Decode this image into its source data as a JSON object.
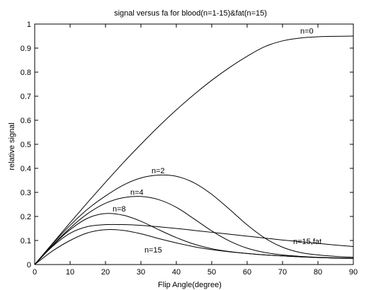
{
  "chart_data": {
    "type": "line",
    "title": "signal versus fa for blood(n=1-15)&fat(n=15)",
    "xlabel": "Flip Angle(degree)",
    "ylabel": "relative signal",
    "xlim": [
      0,
      90
    ],
    "ylim": [
      0,
      1
    ],
    "grid": false,
    "legend": "none",
    "x_ticks": [
      0,
      10,
      20,
      30,
      40,
      50,
      60,
      70,
      80,
      90
    ],
    "x_tick_labels": [
      "0",
      "10",
      "20",
      "30",
      "40",
      "50",
      "60",
      "70",
      "80",
      "90"
    ],
    "y_ticks": [
      0,
      0.1,
      0.2,
      0.3,
      0.4,
      0.5,
      0.6,
      0.7,
      0.8,
      0.9,
      1
    ],
    "y_tick_labels": [
      "0",
      "0.1",
      "0.2",
      "0.3",
      "0.4",
      "0.5",
      "0.6",
      "0.7",
      "0.8",
      "0.9",
      "1"
    ],
    "x": [
      0,
      5,
      10,
      15,
      20,
      25,
      30,
      35,
      40,
      45,
      50,
      55,
      60,
      65,
      70,
      75,
      80,
      85,
      90
    ],
    "series": [
      {
        "name": "n=0",
        "label_at": [
          75,
          0.96
        ],
        "values": [
          0,
          0.087,
          0.174,
          0.259,
          0.342,
          0.423,
          0.5,
          0.574,
          0.643,
          0.707,
          0.766,
          0.819,
          0.866,
          0.906,
          0.93,
          0.942,
          0.947,
          0.949,
          0.95
        ]
      },
      {
        "name": "n=2",
        "label_at": [
          33,
          0.38
        ],
        "values": [
          0,
          0.085,
          0.163,
          0.231,
          0.285,
          0.33,
          0.36,
          0.372,
          0.367,
          0.34,
          0.292,
          0.23,
          0.165,
          0.11,
          0.072,
          0.05,
          0.04,
          0.034,
          0.03
        ]
      },
      {
        "name": "n=4",
        "label_at": [
          27,
          0.29
        ],
        "values": [
          0,
          0.08,
          0.152,
          0.212,
          0.255,
          0.278,
          0.283,
          0.27,
          0.238,
          0.19,
          0.14,
          0.098,
          0.068,
          0.05,
          0.04,
          0.034,
          0.03,
          0.028,
          0.026
        ]
      },
      {
        "name": "n=8",
        "label_at": [
          22,
          0.22
        ],
        "values": [
          0,
          0.078,
          0.145,
          0.193,
          0.212,
          0.205,
          0.18,
          0.145,
          0.112,
          0.085,
          0.066,
          0.054,
          0.046,
          0.04,
          0.036,
          0.032,
          0.029,
          0.027,
          0.025
        ]
      },
      {
        "name": "n=15",
        "label_at": [
          31,
          0.05
        ],
        "values": [
          0,
          0.056,
          0.1,
          0.132,
          0.145,
          0.142,
          0.128,
          0.108,
          0.09,
          0.074,
          0.062,
          0.053,
          0.046,
          0.04,
          0.036,
          0.032,
          0.029,
          0.027,
          0.025
        ]
      },
      {
        "name": "n=15,fat",
        "label_at": [
          73,
          0.085
        ],
        "values": [
          0,
          0.075,
          0.13,
          0.158,
          0.166,
          0.166,
          0.163,
          0.157,
          0.15,
          0.142,
          0.134,
          0.126,
          0.118,
          0.11,
          0.102,
          0.095,
          0.088,
          0.081,
          0.075
        ]
      }
    ]
  }
}
